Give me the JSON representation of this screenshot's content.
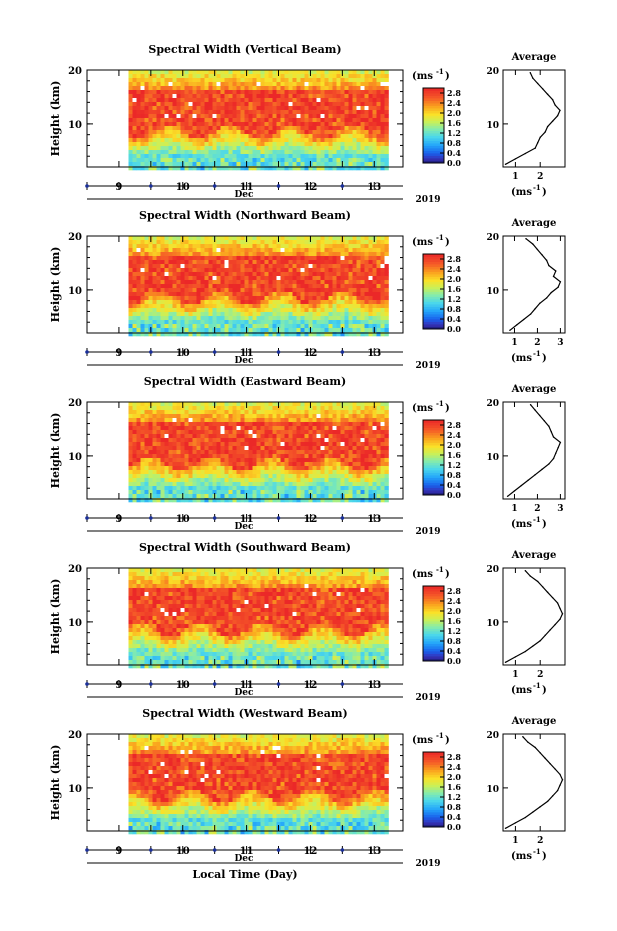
{
  "figure": {
    "bottom_xlabel": "Local Time (Day)"
  },
  "chart_data": [
    {
      "type": "heatmap",
      "title": "Spectral Width (Vertical Beam)",
      "ylabel": "Height (km)",
      "xlabel": "Dec",
      "year": "2019",
      "x_ticks": [
        "9",
        "10",
        "11",
        "12",
        "13"
      ],
      "x_range": [
        8.5,
        13.45
      ],
      "data_start_day": 9.15,
      "data_end_day": 13.2,
      "y_ticks": [
        "10",
        "20"
      ],
      "ylim": [
        2,
        20
      ],
      "colorbar": {
        "unit": "(ms-1)",
        "ticks": [
          "0.0",
          "0.4",
          "0.8",
          "1.2",
          "1.6",
          "2.0",
          "2.4",
          "2.8"
        ],
        "range": [
          0,
          3.0
        ]
      },
      "average_profile": {
        "title": "Average",
        "xlabel": "(ms-1)",
        "x_ticks": [
          "1",
          "2"
        ],
        "xlim": [
          0.5,
          3.0
        ],
        "height": [
          2.5,
          3.5,
          4.5,
          5.5,
          6.5,
          7.5,
          8.5,
          9.5,
          10.5,
          11.5,
          12.5,
          13.5,
          14.5,
          15.5,
          16.5,
          17.5,
          18.5,
          19.5
        ],
        "value": [
          0.6,
          1.0,
          1.4,
          1.8,
          1.9,
          2.0,
          2.2,
          2.3,
          2.5,
          2.7,
          2.8,
          2.6,
          2.5,
          2.3,
          2.1,
          1.9,
          1.7,
          1.6
        ]
      }
    },
    {
      "type": "heatmap",
      "title": "Spectral Width (Northward Beam)",
      "ylabel": "Height (km)",
      "xlabel": "Dec",
      "year": "2019",
      "x_ticks": [
        "9",
        "10",
        "11",
        "12",
        "13"
      ],
      "x_range": [
        8.5,
        13.45
      ],
      "data_start_day": 9.15,
      "data_end_day": 13.2,
      "y_ticks": [
        "10",
        "20"
      ],
      "ylim": [
        2,
        20
      ],
      "colorbar": {
        "unit": "(ms-1)",
        "ticks": [
          "0.0",
          "0.4",
          "0.8",
          "1.2",
          "1.6",
          "2.0",
          "2.4",
          "2.8"
        ],
        "range": [
          0,
          3.0
        ]
      },
      "average_profile": {
        "title": "Average",
        "xlabel": "(ms-1)",
        "x_ticks": [
          "1",
          "2",
          "3"
        ],
        "xlim": [
          0.5,
          3.2
        ],
        "height": [
          2.5,
          3.5,
          4.5,
          5.5,
          6.5,
          7.5,
          8.5,
          9.5,
          10.5,
          11.5,
          12.5,
          13.5,
          14.5,
          15.5,
          16.5,
          17.5,
          18.5,
          19.5
        ],
        "value": [
          0.8,
          1.1,
          1.4,
          1.7,
          1.9,
          2.1,
          2.4,
          2.6,
          2.9,
          3.0,
          2.7,
          2.8,
          2.5,
          2.4,
          2.2,
          2.0,
          1.8,
          1.5
        ]
      }
    },
    {
      "type": "heatmap",
      "title": "Spectral Width (Eastward Beam)",
      "ylabel": "Height (km)",
      "xlabel": "Dec",
      "year": "2019",
      "x_ticks": [
        "9",
        "10",
        "11",
        "12",
        "13"
      ],
      "x_range": [
        8.5,
        13.45
      ],
      "data_start_day": 9.15,
      "data_end_day": 13.2,
      "y_ticks": [
        "10",
        "20"
      ],
      "ylim": [
        2,
        20
      ],
      "colorbar": {
        "unit": "(ms-1)",
        "ticks": [
          "0.0",
          "0.4",
          "0.8",
          "1.2",
          "1.6",
          "2.0",
          "2.4",
          "2.8"
        ],
        "range": [
          0,
          3.0
        ]
      },
      "average_profile": {
        "title": "Average",
        "xlabel": "(ms-1)",
        "x_ticks": [
          "1",
          "2",
          "3"
        ],
        "xlim": [
          0.5,
          3.2
        ],
        "height": [
          2.5,
          3.5,
          4.5,
          5.5,
          6.5,
          7.5,
          8.5,
          9.5,
          10.5,
          11.5,
          12.5,
          13.5,
          14.5,
          15.5,
          16.5,
          17.5,
          18.5,
          19.5
        ],
        "value": [
          0.7,
          1.0,
          1.3,
          1.6,
          1.9,
          2.2,
          2.5,
          2.7,
          2.8,
          2.9,
          3.0,
          2.7,
          2.6,
          2.5,
          2.3,
          2.1,
          1.9,
          1.7
        ]
      }
    },
    {
      "type": "heatmap",
      "title": "Spectral Width (Southward Beam)",
      "ylabel": "Height (km)",
      "xlabel": "Dec",
      "year": "2019",
      "x_ticks": [
        "9",
        "10",
        "11",
        "12",
        "13"
      ],
      "x_range": [
        8.5,
        13.45
      ],
      "data_start_day": 9.15,
      "data_end_day": 13.2,
      "y_ticks": [
        "10",
        "20"
      ],
      "ylim": [
        2,
        20
      ],
      "colorbar": {
        "unit": "(ms-1)",
        "ticks": [
          "0.0",
          "0.4",
          "0.8",
          "1.2",
          "1.6",
          "2.0",
          "2.4",
          "2.8"
        ],
        "range": [
          0,
          3.0
        ]
      },
      "average_profile": {
        "title": "Average",
        "xlabel": "(ms-1)",
        "x_ticks": [
          "1",
          "2"
        ],
        "xlim": [
          0.5,
          3.0
        ],
        "height": [
          2.5,
          3.5,
          4.5,
          5.5,
          6.5,
          7.5,
          8.5,
          9.5,
          10.5,
          11.5,
          12.5,
          13.5,
          14.5,
          15.5,
          16.5,
          17.5,
          18.5,
          19.5
        ],
        "value": [
          0.6,
          1.0,
          1.4,
          1.7,
          2.0,
          2.2,
          2.4,
          2.6,
          2.8,
          2.9,
          2.8,
          2.7,
          2.5,
          2.3,
          2.1,
          1.9,
          1.6,
          1.4
        ]
      }
    },
    {
      "type": "heatmap",
      "title": "Spectral Width (Westward Beam)",
      "ylabel": "Height (km)",
      "xlabel": "Dec",
      "year": "2019",
      "x_ticks": [
        "9",
        "10",
        "11",
        "12",
        "13"
      ],
      "x_range": [
        8.5,
        13.45
      ],
      "data_start_day": 9.15,
      "data_end_day": 13.2,
      "y_ticks": [
        "10",
        "20"
      ],
      "ylim": [
        2,
        20
      ],
      "colorbar": {
        "unit": "(ms-1)",
        "ticks": [
          "0.0",
          "0.4",
          "0.8",
          "1.2",
          "1.6",
          "2.0",
          "2.4",
          "2.8"
        ],
        "range": [
          0,
          3.0
        ]
      },
      "average_profile": {
        "title": "Average",
        "xlabel": "(ms-1)",
        "x_ticks": [
          "1",
          "2"
        ],
        "xlim": [
          0.5,
          3.0
        ],
        "height": [
          2.5,
          3.5,
          4.5,
          5.5,
          6.5,
          7.5,
          8.5,
          9.5,
          10.5,
          11.5,
          12.5,
          13.5,
          14.5,
          15.5,
          16.5,
          17.5,
          18.5,
          19.5
        ],
        "value": [
          0.6,
          1.0,
          1.4,
          1.7,
          2.0,
          2.3,
          2.5,
          2.7,
          2.8,
          2.9,
          2.8,
          2.6,
          2.4,
          2.2,
          2.0,
          1.8,
          1.5,
          1.3
        ]
      }
    }
  ]
}
